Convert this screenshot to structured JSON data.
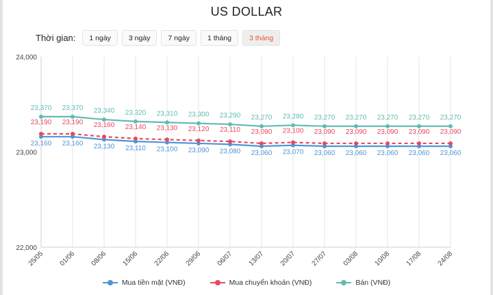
{
  "title": "US DOLLAR",
  "period": {
    "label": "Thời gian:",
    "buttons": [
      "1 ngày",
      "3 ngày",
      "7 ngày",
      "1 tháng",
      "3 tháng"
    ],
    "active": "3 tháng"
  },
  "chart_data": {
    "type": "line",
    "title": "US DOLLAR",
    "xlabel": "",
    "ylabel": "",
    "categories": [
      "25/05",
      "01/06",
      "08/06",
      "15/06",
      "22/06",
      "29/06",
      "06/07",
      "13/07",
      "20/07",
      "27/07",
      "03/08",
      "10/08",
      "17/08",
      "24/08"
    ],
    "ylim": [
      22000,
      24000
    ],
    "yticks": [
      22000,
      23000,
      24000
    ],
    "ytick_labels": [
      "22,000",
      "23,000",
      "24,000"
    ],
    "grid": "vertical",
    "legend": "bottom",
    "series": [
      {
        "name": "Mua tiền mặt (VNĐ)",
        "color": "#4e95d9",
        "dashed": false,
        "values": [
          23160,
          23160,
          23130,
          23110,
          23100,
          23090,
          23080,
          23060,
          23070,
          23060,
          23060,
          23060,
          23060,
          23060
        ],
        "labels": [
          "23,160",
          "23,160",
          "23,130",
          "23,110",
          "23,100",
          "23,090",
          "23,080",
          "23,060",
          "23,070",
          "23,060",
          "23,060",
          "23,060",
          "23,060",
          "23,060"
        ]
      },
      {
        "name": "Mua chuyển khoản (VNĐ)",
        "color": "#e8485f",
        "dashed": true,
        "values": [
          23190,
          23190,
          23160,
          23140,
          23130,
          23120,
          23110,
          23090,
          23100,
          23090,
          23090,
          23090,
          23090,
          23090
        ],
        "labels": [
          "23,190",
          "23,190",
          "23,160",
          "23,140",
          "23,130",
          "23,120",
          "23,110",
          "23,090",
          "23,100",
          "23,090",
          "23,090",
          "23,090",
          "23,090",
          "23,090"
        ]
      },
      {
        "name": "Bán (VNĐ)",
        "color": "#5fbcb3",
        "dashed": false,
        "values": [
          23370,
          23370,
          23340,
          23320,
          23310,
          23300,
          23290,
          23270,
          23280,
          23270,
          23270,
          23270,
          23270,
          23270
        ],
        "labels": [
          "23,370",
          "23,370",
          "23,340",
          "23,320",
          "23,310",
          "23,300",
          "23,290",
          "23,270",
          "23,280",
          "23,270",
          "23,270",
          "23,270",
          "23,270",
          "23,270"
        ]
      }
    ]
  }
}
